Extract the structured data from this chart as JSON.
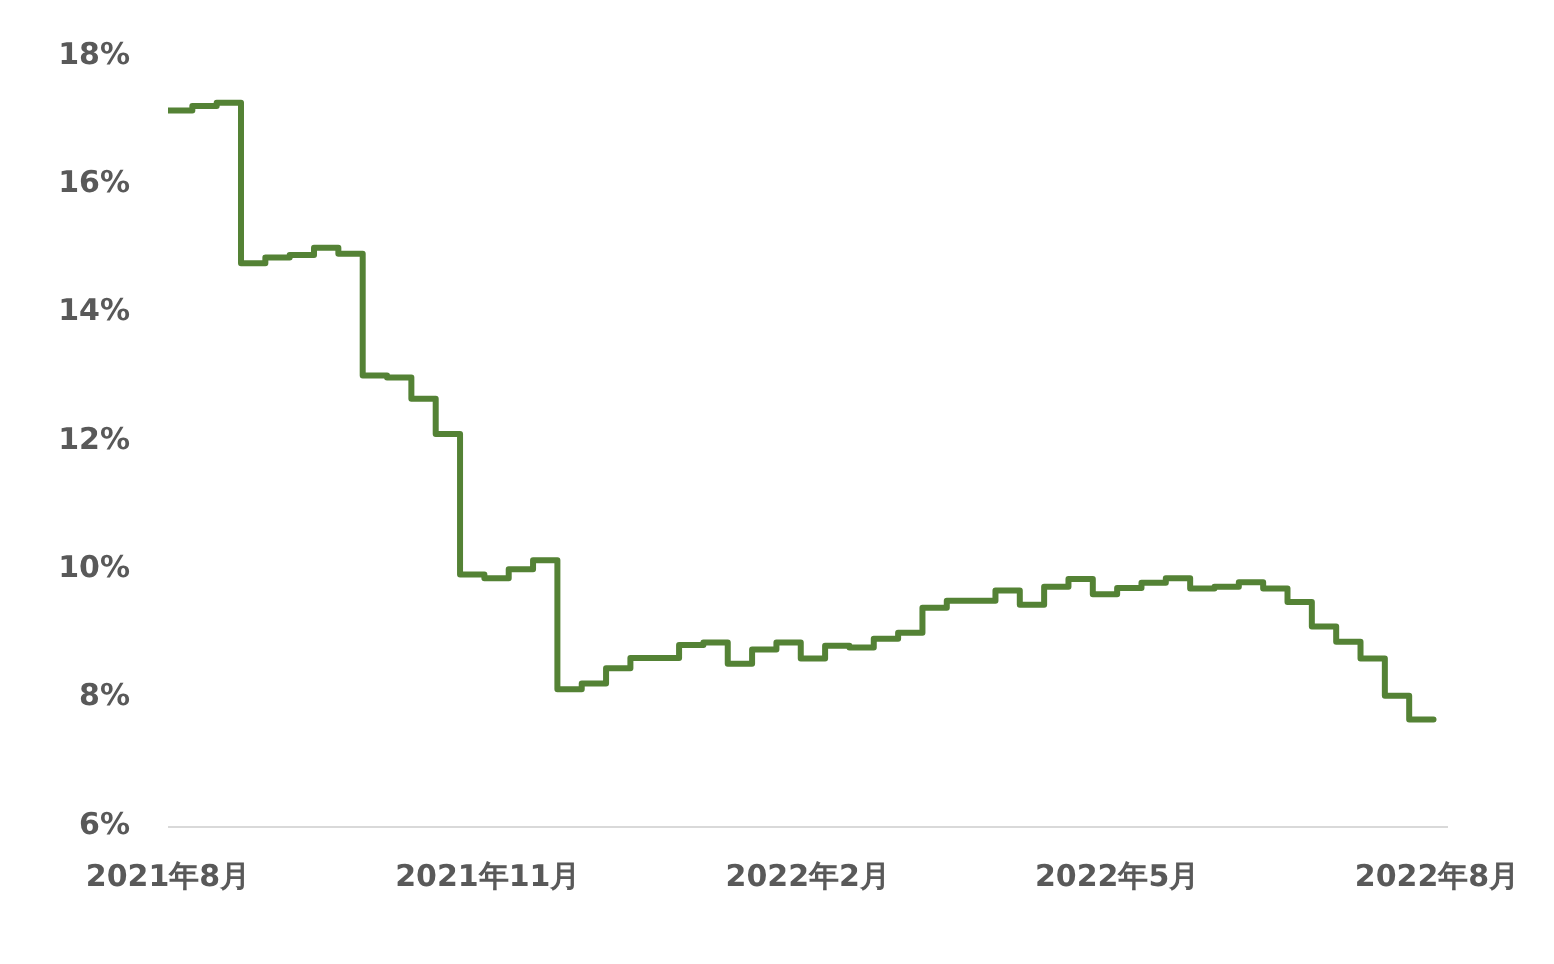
{
  "chart_data": {
    "type": "step",
    "color": "#548235",
    "x": [
      "2021-08-01",
      "2021-08-08",
      "2021-08-15",
      "2021-08-22",
      "2021-08-29",
      "2021-09-05",
      "2021-09-12",
      "2021-09-19",
      "2021-09-26",
      "2021-10-03",
      "2021-10-10",
      "2021-10-17",
      "2021-10-24",
      "2021-10-31",
      "2021-11-07",
      "2021-11-14",
      "2021-11-21",
      "2021-11-28",
      "2021-12-05",
      "2021-12-12",
      "2021-12-19",
      "2021-12-26",
      "2022-01-02",
      "2022-01-09",
      "2022-01-16",
      "2022-01-23",
      "2022-01-30",
      "2022-02-06",
      "2022-02-13",
      "2022-02-20",
      "2022-02-27",
      "2022-03-06",
      "2022-03-13",
      "2022-03-20",
      "2022-03-27",
      "2022-04-03",
      "2022-04-10",
      "2022-04-17",
      "2022-04-24",
      "2022-05-01",
      "2022-05-08",
      "2022-05-15",
      "2022-05-22",
      "2022-05-29",
      "2022-06-05",
      "2022-06-12",
      "2022-06-19",
      "2022-06-26",
      "2022-07-03",
      "2022-07-10",
      "2022-07-17",
      "2022-07-24",
      "2022-07-31"
    ],
    "values": [
      17.15,
      17.22,
      17.27,
      14.77,
      14.86,
      14.9,
      15.01,
      14.92,
      13.02,
      12.99,
      12.66,
      12.11,
      9.92,
      9.86,
      10.0,
      10.14,
      8.13,
      8.22,
      8.46,
      8.62,
      8.62,
      8.82,
      8.86,
      8.53,
      8.75,
      8.86,
      8.61,
      8.81,
      8.78,
      8.92,
      9.01,
      9.4,
      9.51,
      9.51,
      9.67,
      9.45,
      9.73,
      9.85,
      9.61,
      9.71,
      9.79,
      9.86,
      9.7,
      9.73,
      9.8,
      9.7,
      9.49,
      9.11,
      8.87,
      8.61,
      8.03,
      7.66,
      7.66
    ],
    "xlim": [
      "2021-08-01",
      "2022-08-04"
    ],
    "xticks": [
      {
        "value": "2021-08-01",
        "label": "2021年8月"
      },
      {
        "value": "2021-11-01",
        "label": "2021年11月"
      },
      {
        "value": "2022-02-01",
        "label": "2022年2月"
      },
      {
        "value": "2022-05-01",
        "label": "2022年5月"
      },
      {
        "value": "2022-08-01",
        "label": "2022年8月"
      }
    ],
    "ylim": [
      6,
      18
    ],
    "yticks": [
      {
        "value": 6,
        "label": "6%"
      },
      {
        "value": 8,
        "label": "8%"
      },
      {
        "value": 10,
        "label": "10%"
      },
      {
        "value": 12,
        "label": "12%"
      },
      {
        "value": 14,
        "label": "14%"
      },
      {
        "value": 16,
        "label": "16%"
      },
      {
        "value": 18,
        "label": "18%"
      }
    ],
    "grid": false
  }
}
